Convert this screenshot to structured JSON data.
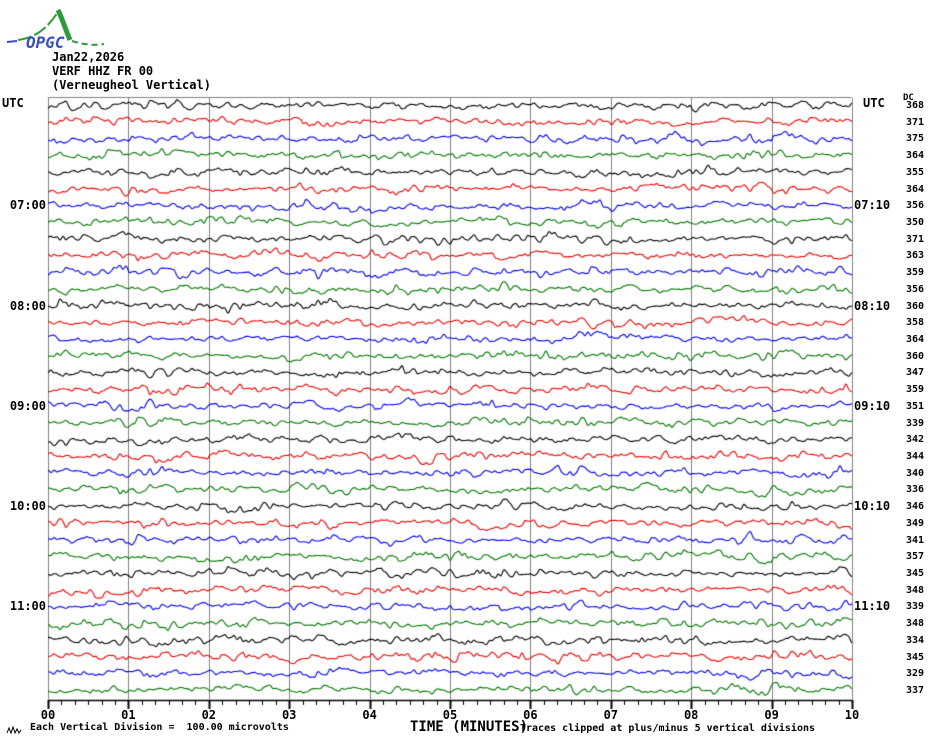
{
  "logo": {
    "text": "OPGC",
    "curve_color": "#2e9b3a",
    "text_color": "#3a4ec0"
  },
  "header": {
    "date": "Jan22,2026",
    "station": "VERF HHZ FR 00",
    "location": "(Verneugheol Vertical)"
  },
  "axes": {
    "utc_left": "UTC",
    "utc_right": "UTC",
    "dc_label": "DC",
    "xlabel": "TIME (MINUTES)",
    "x_tick_labels": [
      "00",
      "01",
      "02",
      "03",
      "04",
      "05",
      "06",
      "07",
      "08",
      "09",
      "10"
    ]
  },
  "footer": {
    "scale_note": "Each Vertical Division =  100.00 microvolts",
    "clip_note": "Traces clipped at plus/minus 5 vertical divisions"
  },
  "chart_data": {
    "type": "line",
    "title": "OPGC helicorder drum record — VERF HHZ FR 00 (Verneugheol Vertical), Jan22,2026",
    "xlabel": "TIME (MINUTES)",
    "x_range_minutes": [
      0,
      10
    ],
    "x_major_tick_minutes": 1,
    "x_minor_ticks_per_major": 5,
    "minutes_per_row": 10,
    "vertical_division_microvolts": 100.0,
    "clip_divisions": 5,
    "grid_color": "#808080",
    "axis_color": "#000000",
    "trace_palette": {
      "black": "#000000",
      "red": "#ee0000",
      "blue": "#0000ee",
      "green": "#007700"
    },
    "left_hour_labels": [
      {
        "row": 7,
        "label": "07:00"
      },
      {
        "row": 13,
        "label": "08:00"
      },
      {
        "row": 19,
        "label": "09:00"
      },
      {
        "row": 25,
        "label": "10:00"
      },
      {
        "row": 31,
        "label": "11:00"
      }
    ],
    "right_hour_labels": [
      {
        "row": 7,
        "label": "07:10"
      },
      {
        "row": 13,
        "label": "08:10"
      },
      {
        "row": 19,
        "label": "09:10"
      },
      {
        "row": 25,
        "label": "10:10"
      },
      {
        "row": 31,
        "label": "11:10"
      }
    ],
    "rows": [
      {
        "start": "06:00",
        "color": "black",
        "dc": 368
      },
      {
        "start": "06:10",
        "color": "red",
        "dc": 371
      },
      {
        "start": "06:20",
        "color": "blue",
        "dc": 375
      },
      {
        "start": "06:30",
        "color": "green",
        "dc": 364
      },
      {
        "start": "06:40",
        "color": "black",
        "dc": 355
      },
      {
        "start": "06:50",
        "color": "red",
        "dc": 364
      },
      {
        "start": "07:00",
        "color": "blue",
        "dc": 356
      },
      {
        "start": "07:10",
        "color": "green",
        "dc": 350
      },
      {
        "start": "07:20",
        "color": "black",
        "dc": 371
      },
      {
        "start": "07:30",
        "color": "red",
        "dc": 363
      },
      {
        "start": "07:40",
        "color": "blue",
        "dc": 359
      },
      {
        "start": "07:50",
        "color": "green",
        "dc": 356
      },
      {
        "start": "08:00",
        "color": "black",
        "dc": 360
      },
      {
        "start": "08:10",
        "color": "red",
        "dc": 358
      },
      {
        "start": "08:20",
        "color": "blue",
        "dc": 364
      },
      {
        "start": "08:30",
        "color": "green",
        "dc": 360
      },
      {
        "start": "08:40",
        "color": "black",
        "dc": 347
      },
      {
        "start": "08:50",
        "color": "red",
        "dc": 359
      },
      {
        "start": "09:00",
        "color": "blue",
        "dc": 351
      },
      {
        "start": "09:10",
        "color": "green",
        "dc": 339
      },
      {
        "start": "09:20",
        "color": "black",
        "dc": 342
      },
      {
        "start": "09:30",
        "color": "red",
        "dc": 344
      },
      {
        "start": "09:40",
        "color": "blue",
        "dc": 340
      },
      {
        "start": "09:50",
        "color": "green",
        "dc": 336
      },
      {
        "start": "10:00",
        "color": "black",
        "dc": 346
      },
      {
        "start": "10:10",
        "color": "red",
        "dc": 349
      },
      {
        "start": "10:20",
        "color": "blue",
        "dc": 341
      },
      {
        "start": "10:30",
        "color": "green",
        "dc": 357
      },
      {
        "start": "10:40",
        "color": "black",
        "dc": 345
      },
      {
        "start": "10:50",
        "color": "red",
        "dc": 348
      },
      {
        "start": "11:00",
        "color": "blue",
        "dc": 339
      },
      {
        "start": "11:10",
        "color": "green",
        "dc": 348
      },
      {
        "start": "11:20",
        "color": "black",
        "dc": 334
      },
      {
        "start": "11:30",
        "color": "red",
        "dc": 345
      },
      {
        "start": "11:40",
        "color": "blue",
        "dc": 329
      },
      {
        "start": "11:50",
        "color": "green",
        "dc": 337
      }
    ],
    "waveform_note": "each row is 10 minutes of continuous microseismic background noise; exact sample values are not legible from the image"
  }
}
